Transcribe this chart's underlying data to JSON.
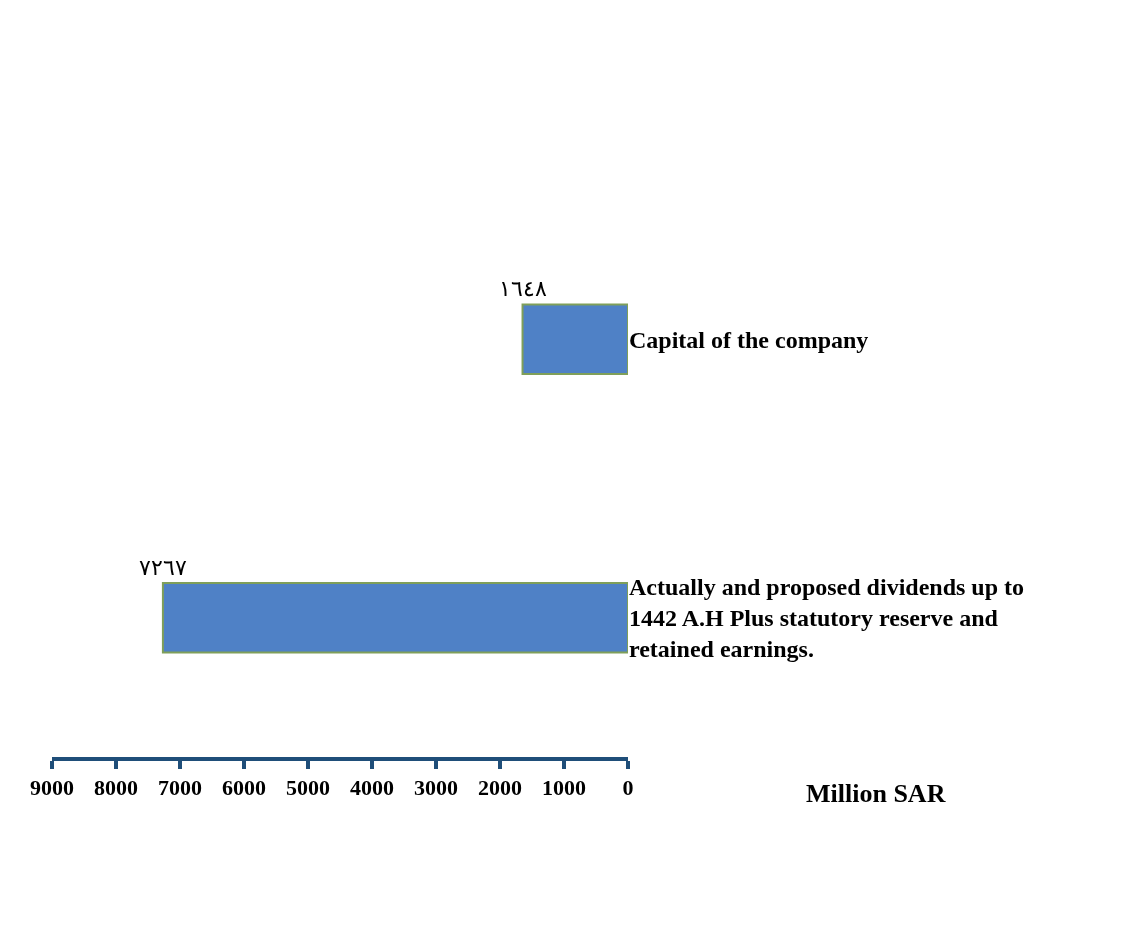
{
  "chart_data": {
    "type": "bar",
    "orientation": "horizontal",
    "categories": [
      "Capital of the company",
      "Actually and proposed dividends up to 1442 A.H Plus statutory reserve and retained earnings."
    ],
    "values": [
      1648,
      7267
    ],
    "value_labels": [
      "١٦٤٨",
      "٧٢٦٧"
    ],
    "color": "#4f81c6",
    "xlim": [
      9000,
      0
    ],
    "xticks": [
      9000,
      8000,
      7000,
      6000,
      5000,
      4000,
      3000,
      2000,
      1000,
      0
    ],
    "xlabel": "Million SAR",
    "grid": false,
    "legend": false
  }
}
